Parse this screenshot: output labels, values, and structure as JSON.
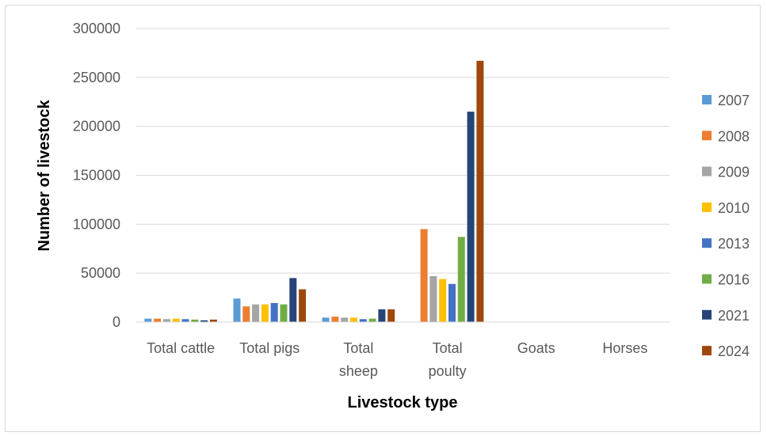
{
  "chart_data": {
    "type": "bar",
    "title": "",
    "xlabel": "Livestock type",
    "ylabel": "Number of livestock",
    "ylim": [
      0,
      300000
    ],
    "yticks": [
      0,
      50000,
      100000,
      150000,
      200000,
      250000,
      300000
    ],
    "ytick_labels": [
      "0",
      "50000",
      "100000",
      "150000",
      "200000",
      "250000",
      "300000"
    ],
    "grid": true,
    "legend_position": "right",
    "categories": [
      [
        "Total cattle"
      ],
      [
        "Total pigs"
      ],
      [
        "Total",
        "sheep"
      ],
      [
        "Total",
        "poulty"
      ],
      [
        "Goats"
      ],
      [
        "Horses"
      ]
    ],
    "series": [
      {
        "name": "2007",
        "color": "#5B9BD5",
        "values": [
          3500,
          24000,
          4500,
          0,
          0,
          0
        ]
      },
      {
        "name": "2008",
        "color": "#ED7D31",
        "values": [
          3500,
          16000,
          5500,
          95000,
          0,
          0
        ]
      },
      {
        "name": "2009",
        "color": "#A5A5A5",
        "values": [
          3000,
          18000,
          4500,
          47000,
          0,
          0
        ]
      },
      {
        "name": "2010",
        "color": "#FFC000",
        "values": [
          3500,
          18000,
          4500,
          44000,
          0,
          0
        ]
      },
      {
        "name": "2013",
        "color": "#4472C4",
        "values": [
          3000,
          19500,
          3000,
          39000,
          0,
          0
        ]
      },
      {
        "name": "2016",
        "color": "#70AD47",
        "values": [
          2500,
          18000,
          3500,
          87000,
          0,
          0
        ]
      },
      {
        "name": "2021",
        "color": "#264478",
        "values": [
          1800,
          45000,
          13000,
          215000,
          0,
          0
        ]
      },
      {
        "name": "2024",
        "color": "#9E480E",
        "values": [
          2500,
          33500,
          13000,
          267000,
          0,
          0
        ]
      }
    ]
  }
}
